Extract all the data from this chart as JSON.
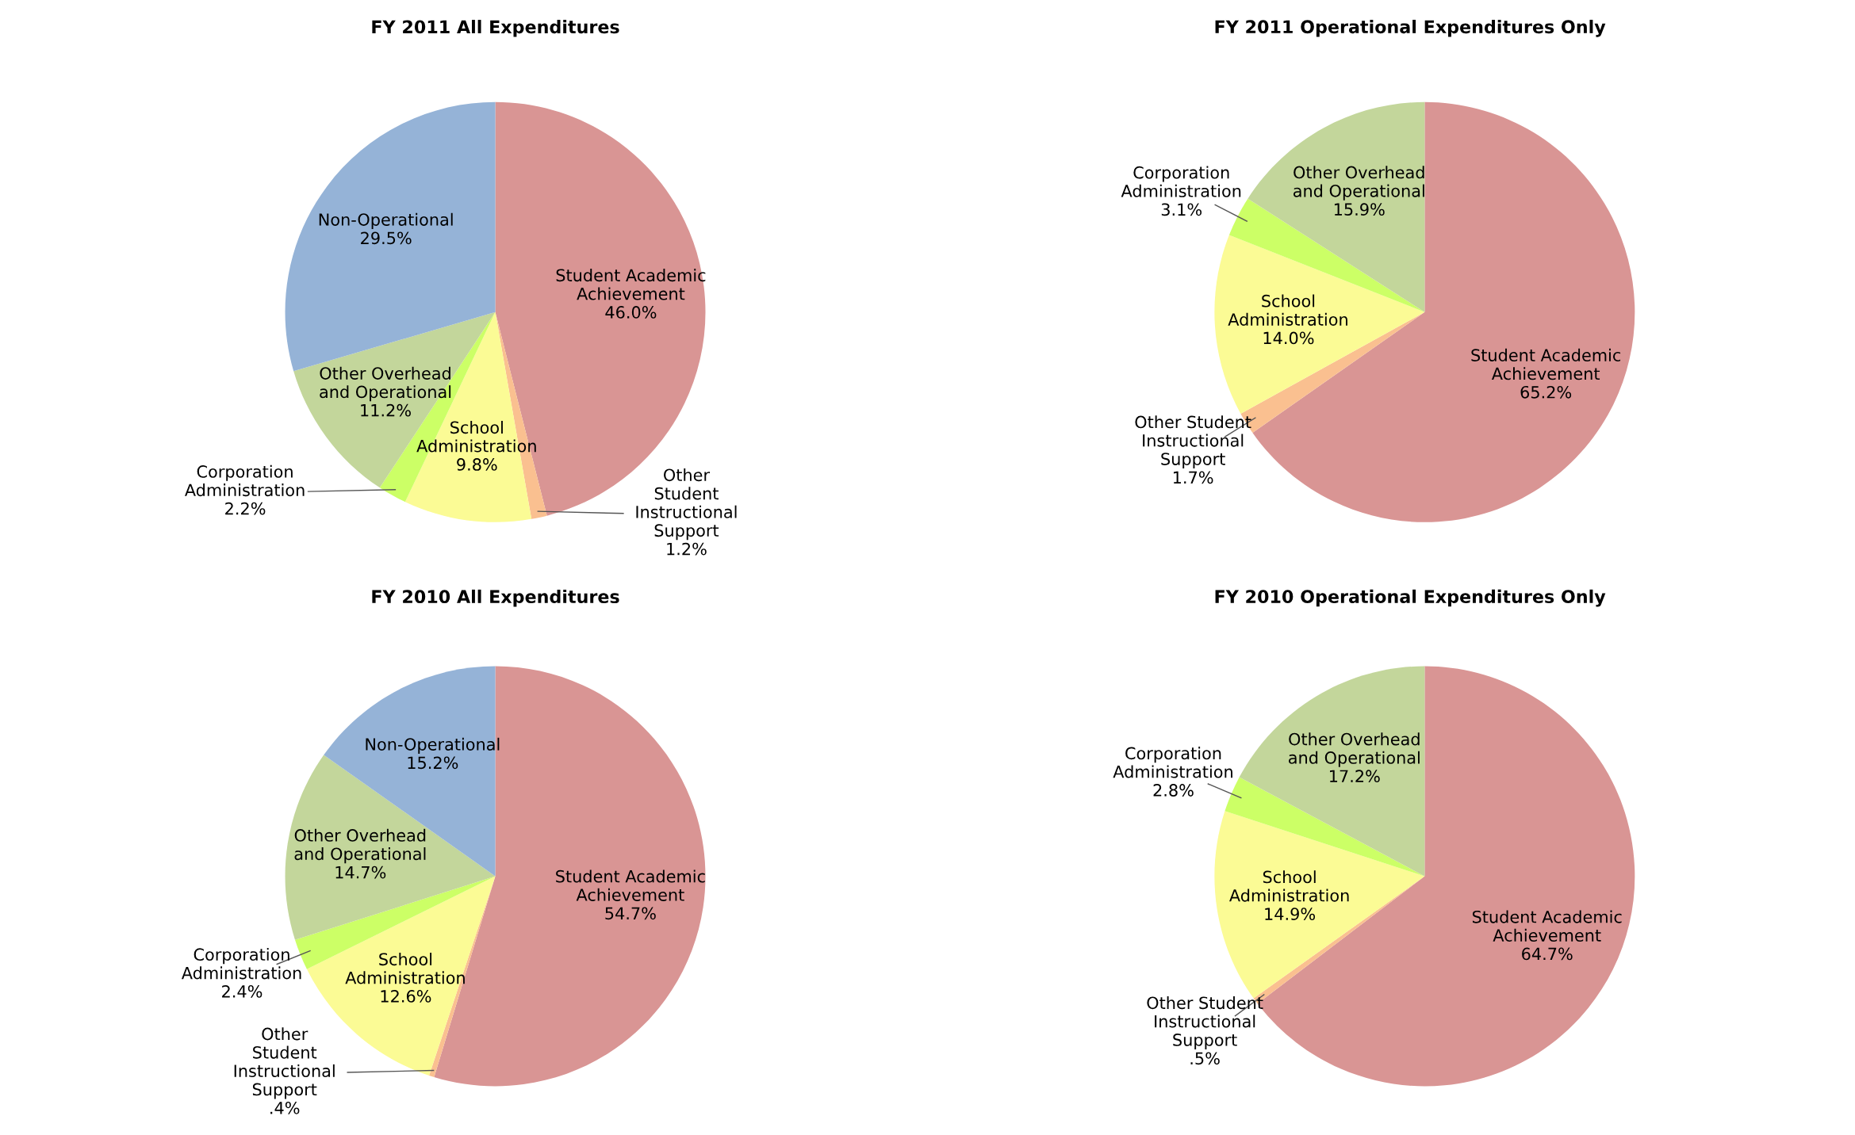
{
  "chart_data": [
    {
      "type": "pie",
      "title": "FY 2011 All Expenditures",
      "categories": [
        "Student Academic\nAchievement",
        "Other\nStudent\nInstructional\nSupport",
        "School\nAdministration",
        "Corporation\nAdministration",
        "Other Overhead\nand Operational",
        "Non-Operational"
      ],
      "values": [
        46.0,
        1.2,
        9.8,
        2.2,
        11.2,
        29.5
      ],
      "value_labels": [
        "46.0%",
        "1.2%",
        "9.8%",
        "2.2%",
        "11.2%",
        "29.5%"
      ],
      "colors": [
        "#d99594",
        "#fac090",
        "#fbfb95",
        "#ccff66",
        "#c3d69b",
        "#95b3d7"
      ]
    },
    {
      "type": "pie",
      "title": "FY 2011 Operational Expenditures Only",
      "categories": [
        "Student Academic\nAchievement",
        "Other Student\nInstructional\nSupport",
        "School\nAdministration",
        "Corporation\nAdministration",
        "Other Overhead\nand Operational"
      ],
      "values": [
        65.2,
        1.7,
        14.0,
        3.1,
        15.9
      ],
      "value_labels": [
        "65.2%",
        "1.7%",
        "14.0%",
        "3.1%",
        "15.9%"
      ],
      "colors": [
        "#d99594",
        "#fac090",
        "#fbfb95",
        "#ccff66",
        "#c3d69b"
      ]
    },
    {
      "type": "pie",
      "title": "FY 2010 All Expenditures",
      "categories": [
        "Student Academic\nAchievement",
        "Other\nStudent\nInstructional\nSupport",
        "School\nAdministration",
        "Corporation\nAdministration",
        "Other Overhead\nand Operational",
        "Non-Operational"
      ],
      "values": [
        54.7,
        0.4,
        12.6,
        2.4,
        14.7,
        15.2
      ],
      "value_labels": [
        "54.7%",
        ".4%",
        "12.6%",
        "2.4%",
        "14.7%",
        "15.2%"
      ],
      "colors": [
        "#d99594",
        "#fac090",
        "#fbfb95",
        "#ccff66",
        "#c3d69b",
        "#95b3d7"
      ]
    },
    {
      "type": "pie",
      "title": "FY 2010 Operational Expenditures Only",
      "categories": [
        "Student Academic\nAchievement",
        "Other Student\nInstructional\nSupport",
        "School\nAdministration",
        "Corporation\nAdministration",
        "Other Overhead\nand Operational"
      ],
      "values": [
        64.7,
        0.5,
        14.9,
        2.8,
        17.2
      ],
      "value_labels": [
        "64.7%",
        ".5%",
        "14.9%",
        "2.8%",
        "17.2%"
      ],
      "colors": [
        "#d99594",
        "#fac090",
        "#fbfb95",
        "#ccff66",
        "#c3d69b"
      ]
    }
  ]
}
